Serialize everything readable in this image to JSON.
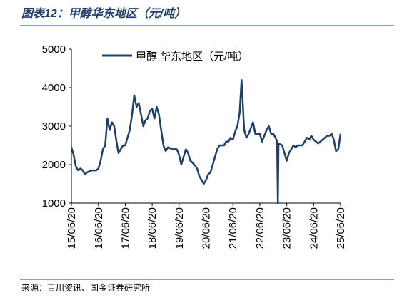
{
  "chart_data": {
    "type": "line",
    "title": "图表12：甲醇华东地区（元/吨）",
    "source": "来源：百川资讯、国金证券研究所",
    "x": [
      "15/06/20",
      "15/07/20",
      "15/08/20",
      "15/09/20",
      "15/10/20",
      "15/11/20",
      "15/12/20",
      "16/01/20",
      "16/03/20",
      "16/05/20",
      "16/06/20",
      "16/07/20",
      "16/08/20",
      "16/09/20",
      "16/10/20",
      "16/11/20",
      "16/12/20",
      "17/01/20",
      "17/02/20",
      "17/03/20",
      "17/04/20",
      "17/05/20",
      "17/06/20",
      "17/07/20",
      "17/08/20",
      "17/09/20",
      "17/10/20",
      "17/11/20",
      "17/12/20",
      "18/01/20",
      "18/02/20",
      "18/03/20",
      "18/04/20",
      "18/05/20",
      "18/06/20",
      "18/07/20",
      "18/08/20",
      "18/09/20",
      "18/10/20",
      "18/11/20",
      "18/12/20",
      "19/01/20",
      "19/03/20",
      "19/05/20",
      "19/06/20",
      "19/07/20",
      "19/08/20",
      "19/09/20",
      "19/10/20",
      "19/11/20",
      "19/12/20",
      "20/02/20",
      "20/03/20",
      "20/04/20",
      "20/05/20",
      "20/06/20",
      "20/07/20",
      "20/08/20",
      "20/09/20",
      "20/10/20",
      "20/11/20",
      "20/12/20",
      "21/01/20",
      "21/02/20",
      "21/03/20",
      "21/04/20",
      "21/05/20",
      "21/06/20",
      "21/07/20",
      "21/08/20",
      "21/09/20",
      "21/10/15",
      "21/11/20",
      "21/12/20",
      "22/01/20",
      "22/03/20",
      "22/04/20",
      "22/06/20",
      "22/07/20",
      "22/09/20",
      "22/10/20",
      "22/11/20",
      "22/12/20",
      "23/01/20",
      "23/02/10",
      "23/02/20",
      "23/03/01",
      "23/04/20",
      "23/05/20",
      "23/06/20",
      "23/07/20",
      "23/08/20",
      "23/09/20",
      "23/10/20",
      "23/11/20",
      "23/12/20",
      "24/01/20",
      "24/02/20",
      "24/03/20",
      "24/04/20",
      "24/05/20",
      "24/06/20",
      "24/07/20",
      "24/08/20",
      "24/09/20",
      "24/10/20",
      "24/11/20",
      "24/12/20",
      "25/01/20",
      "25/02/20",
      "25/03/20",
      "25/04/20",
      "25/05/20",
      "25/06/20"
    ],
    "series": [
      {
        "name": "甲醇 华东地区（元/吨）",
        "color": "#1f3f6b",
        "values": [
          2450,
          2250,
          1950,
          1850,
          1900,
          1850,
          1750,
          1800,
          1850,
          1850,
          1900,
          2100,
          2400,
          2500,
          3200,
          2900,
          3100,
          3000,
          2600,
          2300,
          2400,
          2500,
          2500,
          2700,
          2900,
          3300,
          3800,
          3500,
          3600,
          3300,
          3000,
          3150,
          3200,
          3400,
          3450,
          3200,
          3500,
          3300,
          2900,
          2500,
          2350,
          2450,
          2400,
          2400,
          2250,
          2000,
          2200,
          2400,
          2300,
          2100,
          2050,
          1900,
          1700,
          1600,
          1500,
          1600,
          1750,
          1800,
          2000,
          2200,
          2400,
          2500,
          2500,
          2500,
          2600,
          2600,
          2700,
          2650,
          2850,
          3000,
          3350,
          4200,
          2900,
          2700,
          2800,
          3100,
          2800,
          2800,
          2600,
          2900,
          3000,
          2800,
          2800,
          2700,
          2600,
          1000,
          2550,
          2500,
          2300,
          2100,
          2300,
          2400,
          2500,
          2450,
          2500,
          2500,
          2500,
          2600,
          2700,
          2650,
          2750,
          2650,
          2600,
          2550,
          2600,
          2650,
          2700,
          2750,
          2750,
          2800,
          2650,
          2350,
          2400,
          2800
        ]
      }
    ],
    "xlim": [
      "15/06/20",
      "25/06/20"
    ],
    "xticks": [
      "15/06/20",
      "16/06/20",
      "17/06/20",
      "18/06/20",
      "19/06/20",
      "20/06/20",
      "21/06/20",
      "22/06/20",
      "23/06/20",
      "24/06/20",
      "25/06/20"
    ],
    "ylim": [
      1000,
      5000
    ],
    "yticks": [
      1000,
      2000,
      3000,
      4000,
      5000
    ]
  }
}
